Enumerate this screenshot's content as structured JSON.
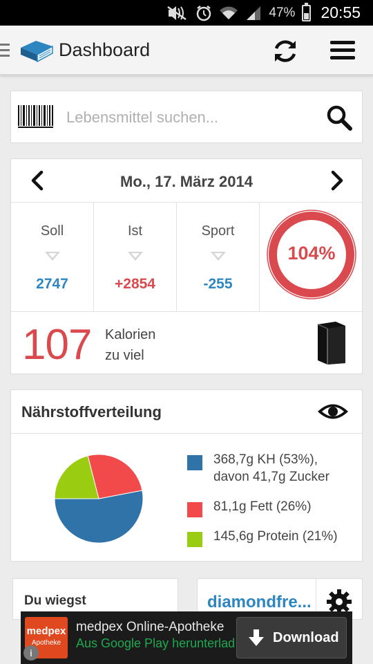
{
  "status_bar": {
    "battery_percent": "47%",
    "time": "20:55",
    "icons": [
      "mute-icon",
      "alarm-icon",
      "wifi-icon",
      "signal-icon",
      "battery-icon"
    ]
  },
  "action_bar": {
    "title": "Dashboard",
    "icons": [
      "app-logo-icon",
      "refresh-icon",
      "menu-icon"
    ]
  },
  "search": {
    "placeholder": "Lebensmittel suchen...",
    "value": "",
    "icons": [
      "barcode-icon",
      "search-icon"
    ]
  },
  "summary": {
    "date": "Mo., 17. März 2014",
    "stats": [
      {
        "label": "Soll",
        "value": "2747",
        "color": "#2e86c1"
      },
      {
        "label": "Ist",
        "value": "+2854",
        "color": "#d9494e"
      },
      {
        "label": "Sport",
        "value": "-255",
        "color": "#2e86c1"
      }
    ],
    "ring_percent_label": "104%",
    "ring_fraction": 1.0,
    "calories": {
      "number": "107",
      "line1": "Kalorien",
      "line2": "zu viel"
    }
  },
  "nutrients": {
    "title": "Nährstoffverteilung",
    "legend": [
      {
        "text": "368,7g KH (53%),",
        "sub": "davon 41,7g Zucker",
        "color": "#2f73a9"
      },
      {
        "text": "81,1g Fett (26%)",
        "sub": "",
        "color": "#f24a4a"
      },
      {
        "text": "145,6g Protein (21%)",
        "sub": "",
        "color": "#9acd12"
      }
    ],
    "pie": [
      {
        "name": "KH",
        "percent": 53,
        "color": "#2f73a9"
      },
      {
        "name": "Fett",
        "percent": 26,
        "color": "#f24a4a"
      },
      {
        "name": "Protein",
        "percent": 21,
        "color": "#9acd12"
      }
    ]
  },
  "weight_card": {
    "label": "Du wiegst"
  },
  "user_card": {
    "name": "diamondfre..."
  },
  "ad": {
    "logo_main": "medpex",
    "logo_sub": "Apotheke",
    "title": "medpex Online-Apotheke",
    "subtitle": "Aus Google Play herunterlad",
    "button": "Download",
    "info": "i"
  },
  "colors": {
    "accent_blue": "#2e86c1",
    "accent_red": "#d9494e"
  }
}
